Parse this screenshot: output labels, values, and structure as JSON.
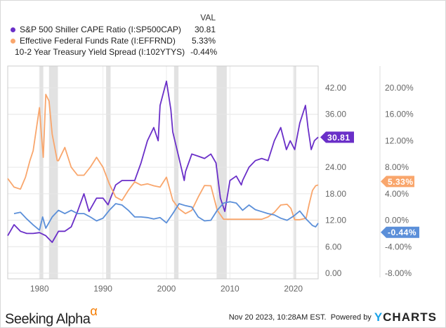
{
  "chart_data": {
    "type": "line",
    "legend_header": "VAL",
    "colors": {
      "cape": "#6a2fc8",
      "fed": "#f9a66c",
      "spread": "#5b8fd9",
      "recession": "#e2e2e2"
    },
    "x_ticks": [
      "1980",
      "1990",
      "2000",
      "2010",
      "2020"
    ],
    "xlim": [
      1975,
      2023.9
    ],
    "left_axis": {
      "ylim": [
        0,
        42
      ],
      "ticks": [
        "0.00",
        "6.00",
        "12.00",
        "18.00",
        "24.00",
        "36.00",
        "42.00"
      ],
      "tick_values": [
        0,
        6,
        12,
        18,
        24,
        36,
        42
      ]
    },
    "right_axis": {
      "ylim": [
        -8,
        20
      ],
      "ticks": [
        "-8.00%",
        "-4.00%",
        "0.00%",
        "4.00%",
        "8.00%",
        "12.00%",
        "16.00%",
        "20.00%"
      ],
      "tick_values": [
        -8,
        -4,
        0,
        4,
        8,
        12,
        16,
        20
      ]
    },
    "recessions": [
      [
        1980.0,
        1980.6
      ],
      [
        1981.5,
        1982.9
      ],
      [
        1990.5,
        1991.2
      ],
      [
        2001.2,
        2001.9
      ],
      [
        2007.9,
        2009.5
      ],
      [
        2020.1,
        2020.4
      ]
    ],
    "series": [
      {
        "key": "cape",
        "name": "S&P 500 Shiller CAPE Ratio (I:SP500CAP)",
        "value_label": "30.81",
        "flag": "30.81",
        "axis": "left",
        "x": [
          1975,
          1976,
          1977,
          1978,
          1979,
          1980,
          1981,
          1982,
          1983,
          1984,
          1985,
          1986,
          1987,
          1987.8,
          1988,
          1989,
          1990,
          1990.8,
          1992,
          1993,
          1994,
          1995,
          1996,
          1997,
          1998,
          1998.7,
          1999,
          2000,
          2000.7,
          2001,
          2002,
          2002.8,
          2003,
          2004,
          2005,
          2006,
          2007,
          2007.8,
          2008.5,
          2009.2,
          2010,
          2011,
          2011.8,
          2012,
          2013,
          2014,
          2015,
          2016,
          2017,
          2018,
          2018.9,
          2019.5,
          2020.2,
          2020.6,
          2021,
          2021.9,
          2022.3,
          2022.8,
          2023.3,
          2023.9
        ],
        "y": [
          8.5,
          11,
          9.5,
          9,
          9,
          9.2,
          8.5,
          7,
          9.5,
          9.5,
          10.5,
          14,
          18,
          14,
          14.5,
          17,
          17,
          15.5,
          20,
          21,
          21,
          21,
          25,
          30,
          33,
          30,
          38,
          43.5,
          37,
          32,
          26,
          21,
          23,
          27,
          26.5,
          26,
          27,
          25,
          17,
          14,
          21,
          22,
          20,
          21,
          24,
          25.5,
          26,
          25.5,
          30,
          33,
          28,
          30,
          28,
          31,
          34,
          38,
          33,
          28,
          30,
          30.81
        ]
      },
      {
        "key": "fed",
        "name": "Effective Federal Funds Rate (I:EFFRND)",
        "value_label": "5.33%",
        "flag": "5.33%",
        "axis": "right",
        "x": [
          1975,
          1976,
          1977,
          1977.8,
          1978.5,
          1979,
          1980,
          1980.3,
          1980.6,
          1981,
          1981.5,
          1982,
          1982.8,
          1983,
          1984,
          1985,
          1986,
          1987,
          1988,
          1989,
          1990,
          1991,
          1992,
          1993,
          1994,
          1995,
          1996,
          1997,
          1998,
          1999,
          2000,
          2001,
          2002,
          2003,
          2004,
          2005,
          2006,
          2007,
          2008,
          2009,
          2015,
          2016,
          2017,
          2018,
          2019,
          2019.6,
          2020.2,
          2021,
          2022,
          2022.5,
          2023,
          2023.5,
          2023.9
        ],
        "y": [
          6.3,
          5,
          4.7,
          6.5,
          9,
          10.5,
          17,
          13,
          9.5,
          19,
          18,
          13,
          9,
          9,
          11,
          8,
          6.8,
          6.8,
          8,
          9.5,
          8,
          5.5,
          3.5,
          3,
          4.5,
          5.8,
          5.3,
          5.5,
          5.2,
          5,
          6.5,
          3,
          1.7,
          1,
          1.5,
          3.5,
          5.25,
          5.2,
          1.5,
          0.15,
          0.15,
          0.5,
          1.2,
          2.3,
          2.4,
          1.8,
          0.08,
          0.08,
          0.3,
          2.5,
          4.5,
          5.2,
          5.33
        ]
      },
      {
        "key": "spread",
        "name": "10-2 Year Treasury Yield Spread (I:102YTYS)",
        "value_label": "-0.44%",
        "flag": "-0.44%",
        "axis": "right",
        "x": [
          1976,
          1977,
          1978,
          1979,
          1980,
          1980.5,
          1981,
          1982,
          1983,
          1984,
          1985,
          1986,
          1987,
          1988,
          1989,
          1990,
          1991,
          1992,
          1993,
          1994,
          1995,
          1996,
          1997,
          1998,
          1999,
          2000,
          2001,
          2002,
          2003,
          2004,
          2005,
          2006,
          2007,
          2008,
          2009,
          2010,
          2011,
          2012,
          2013,
          2014,
          2015,
          2016,
          2017,
          2018,
          2019,
          2020,
          2021,
          2022,
          2022.7,
          2023,
          2023.5,
          2023.9
        ],
        "y": [
          1,
          1.2,
          0.2,
          -0.7,
          -1.5,
          0.5,
          -1.2,
          0.5,
          1.5,
          1,
          1.5,
          1,
          1,
          0.5,
          -0.1,
          0.3,
          1.5,
          2.5,
          2.3,
          1.5,
          0.5,
          0.5,
          0.4,
          0.2,
          0.4,
          -0.4,
          1,
          2.5,
          2.2,
          2,
          0.5,
          -0.1,
          0,
          1.5,
          2.6,
          2.8,
          2.6,
          1.5,
          2.3,
          1.6,
          1.3,
          1,
          0.8,
          0.3,
          0,
          0.6,
          1.4,
          0.2,
          -0.5,
          -0.8,
          -1.0,
          -0.44
        ]
      }
    ]
  },
  "footer": {
    "brand": "Seeking Alpha",
    "brand_mark": "α",
    "timestamp": "Nov 20 2023, 10:28AM EST.",
    "powered_by": "Powered by",
    "ycharts_y": "Y",
    "ycharts_rest": "CHARTS"
  }
}
